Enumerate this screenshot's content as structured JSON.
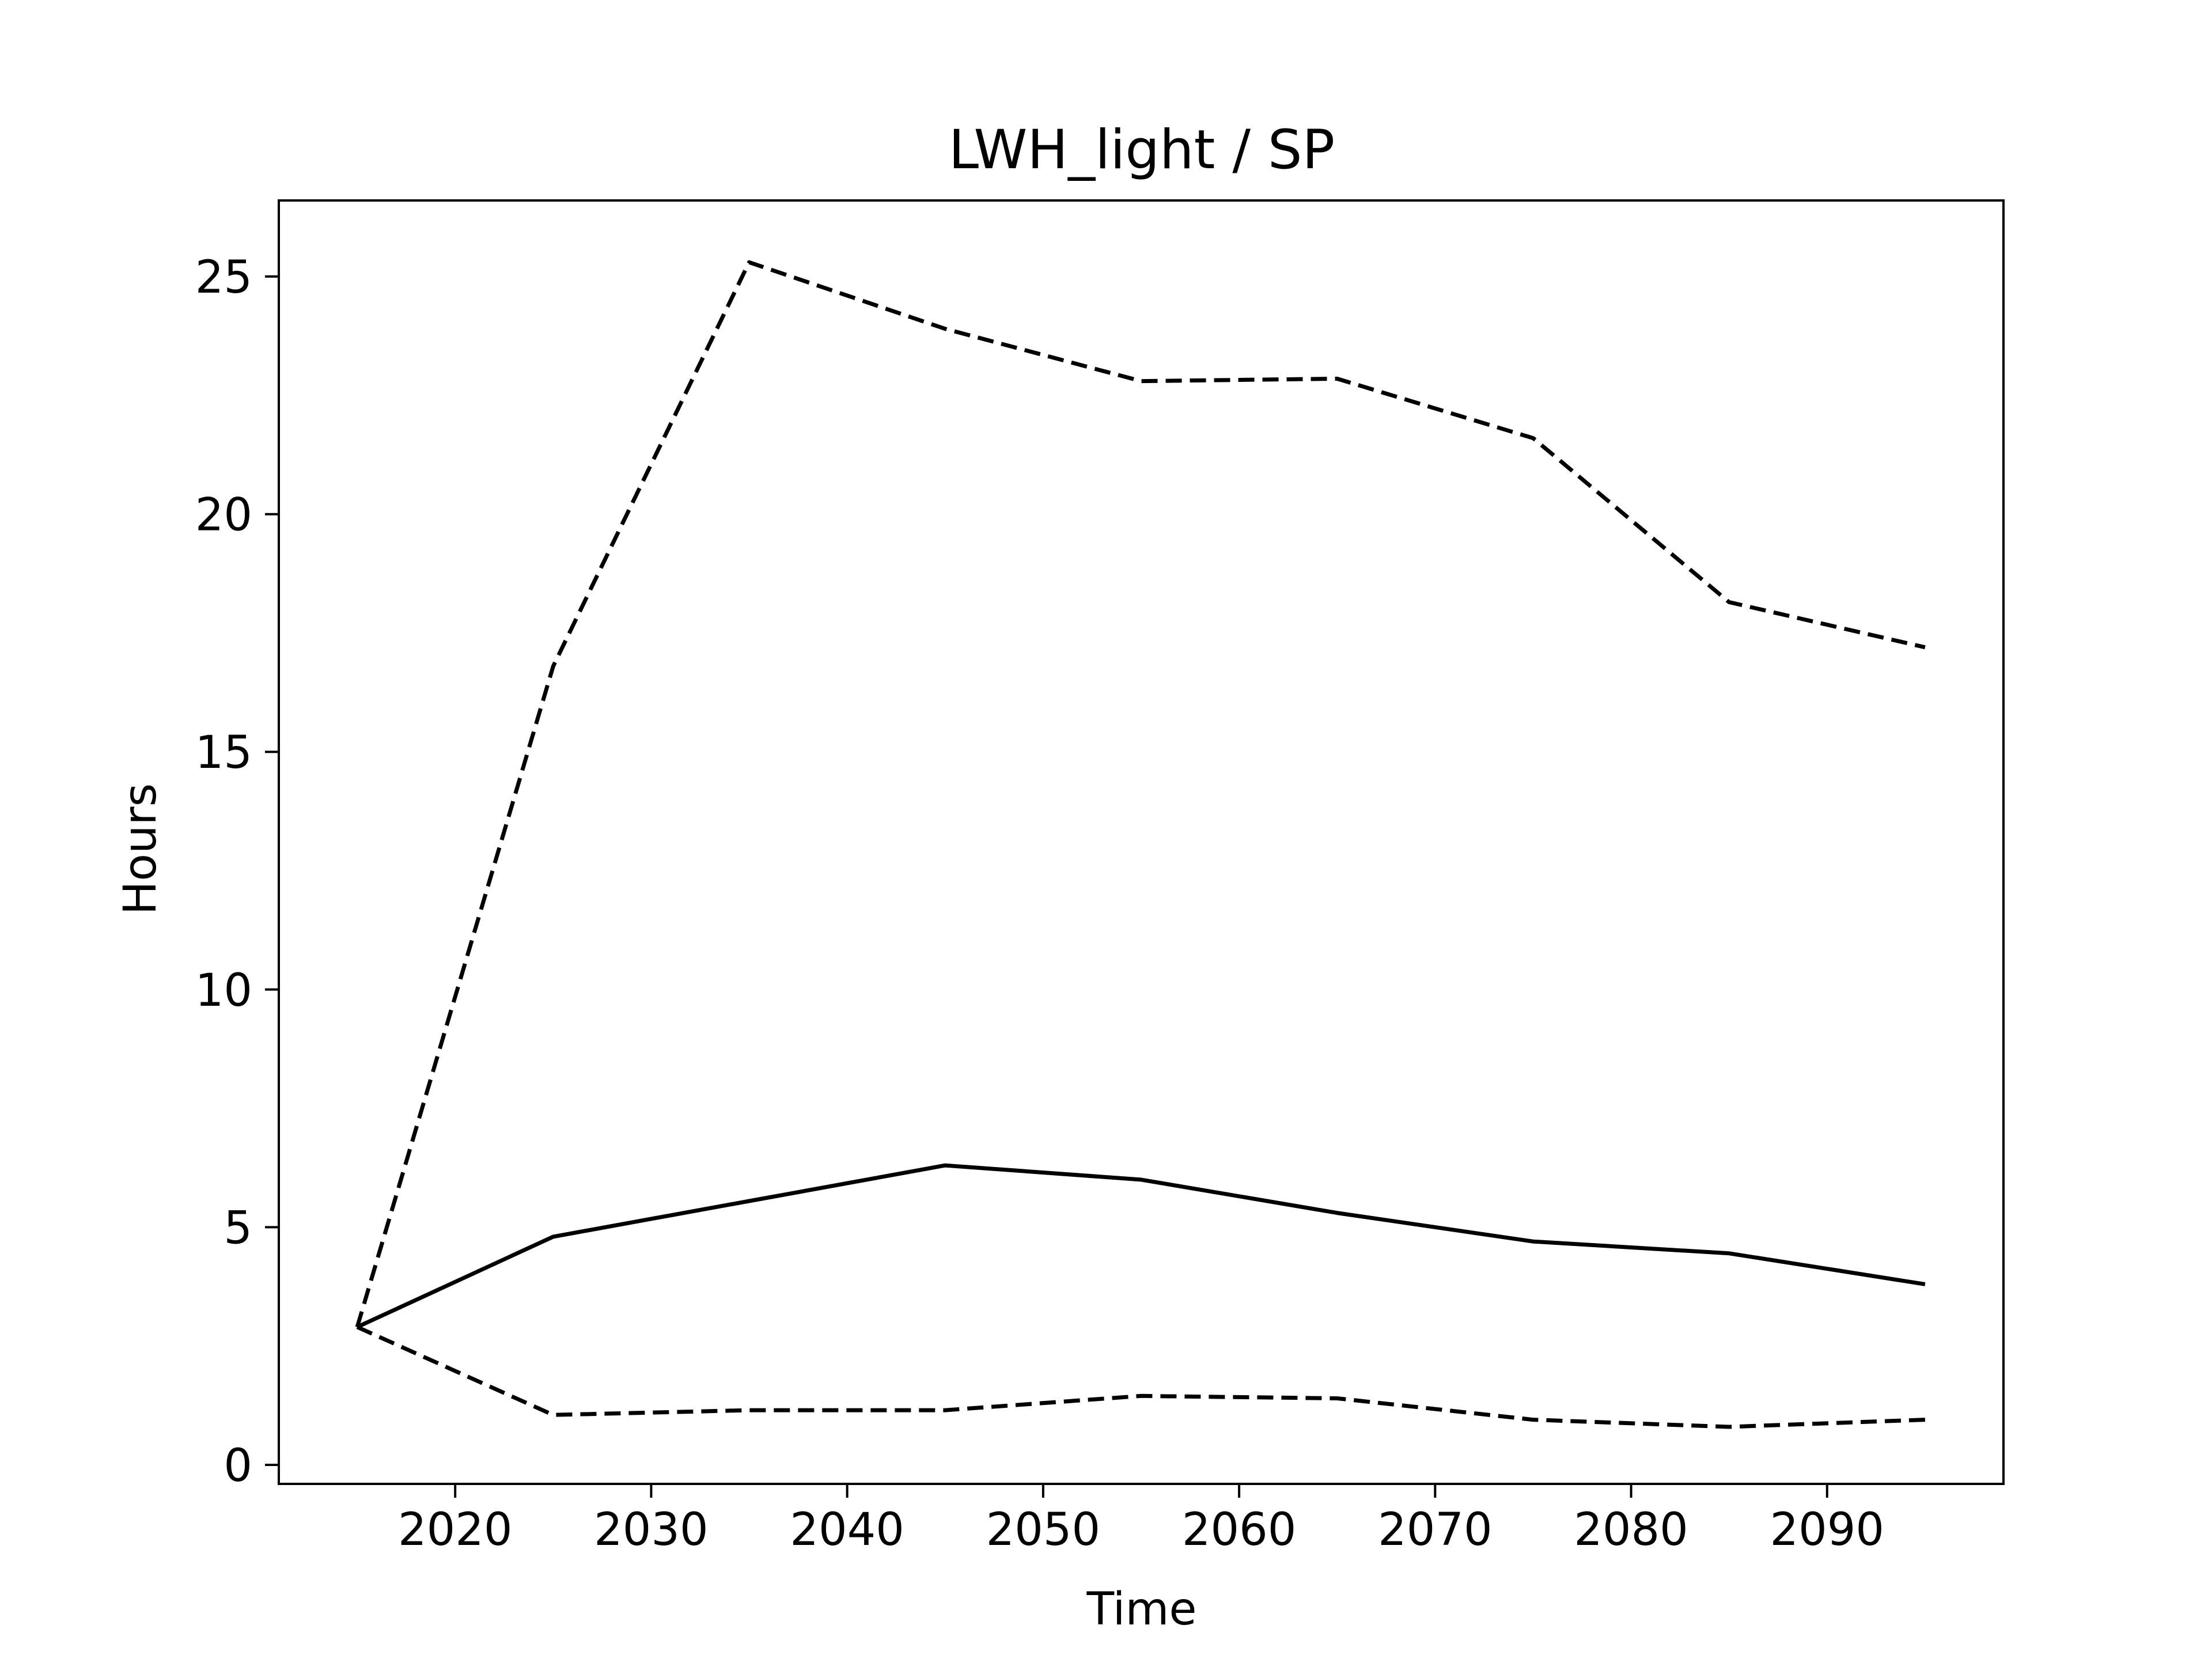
{
  "chart_data": {
    "type": "line",
    "title": "LWH_light / SP",
    "xlabel": "Time",
    "ylabel": "Hours",
    "xlim": [
      2011,
      2099
    ],
    "ylim": [
      -0.4,
      26.6
    ],
    "xticks": [
      2020,
      2030,
      2040,
      2050,
      2060,
      2070,
      2080,
      2090
    ],
    "yticks": [
      0,
      5,
      10,
      15,
      20,
      25
    ],
    "grid": false,
    "x": [
      2015,
      2025,
      2035,
      2045,
      2055,
      2065,
      2075,
      2085,
      2095
    ],
    "series": [
      {
        "style": "solid",
        "color": "#000000",
        "values": [
          2.9,
          4.8,
          5.55,
          6.3,
          6.0,
          5.3,
          4.7,
          4.45,
          3.8
        ]
      },
      {
        "style": "dashed",
        "color": "#000000",
        "values": [
          2.9,
          16.8,
          25.3,
          23.9,
          22.8,
          22.85,
          21.6,
          18.15,
          17.2
        ]
      },
      {
        "style": "dashed",
        "color": "#000000",
        "values": [
          2.9,
          1.05,
          1.15,
          1.15,
          1.45,
          1.4,
          0.95,
          0.8,
          0.95
        ]
      }
    ]
  }
}
